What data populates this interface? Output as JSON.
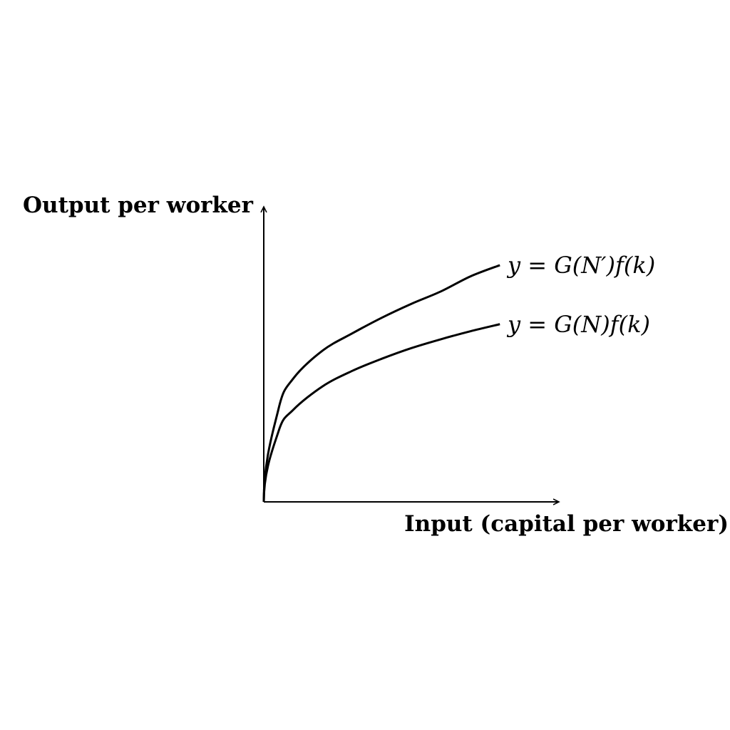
{
  "chart_data": {
    "type": "line",
    "title": "",
    "xlabel": "Input (capital per worker)",
    "ylabel": "Output per worker",
    "grid": false,
    "ticks": false,
    "xlim": [
      0,
      1
    ],
    "ylim": [
      0,
      1
    ],
    "series": [
      {
        "name": "y = G(N′)f(k)",
        "x": [
          0,
          0.05,
          0.1,
          0.2,
          0.3,
          0.4,
          0.5,
          0.6,
          0.7,
          0.8
        ],
        "y": [
          0,
          0.315,
          0.418,
          0.513,
          0.571,
          0.624,
          0.671,
          0.713,
          0.764,
          0.802
        ]
      },
      {
        "name": "y = G(N)f(k)",
        "x": [
          0,
          0.05,
          0.1,
          0.2,
          0.3,
          0.4,
          0.5,
          0.6,
          0.7,
          0.8
        ],
        "y": [
          0,
          0.239,
          0.312,
          0.392,
          0.444,
          0.485,
          0.521,
          0.551,
          0.578,
          0.602
        ]
      }
    ]
  }
}
